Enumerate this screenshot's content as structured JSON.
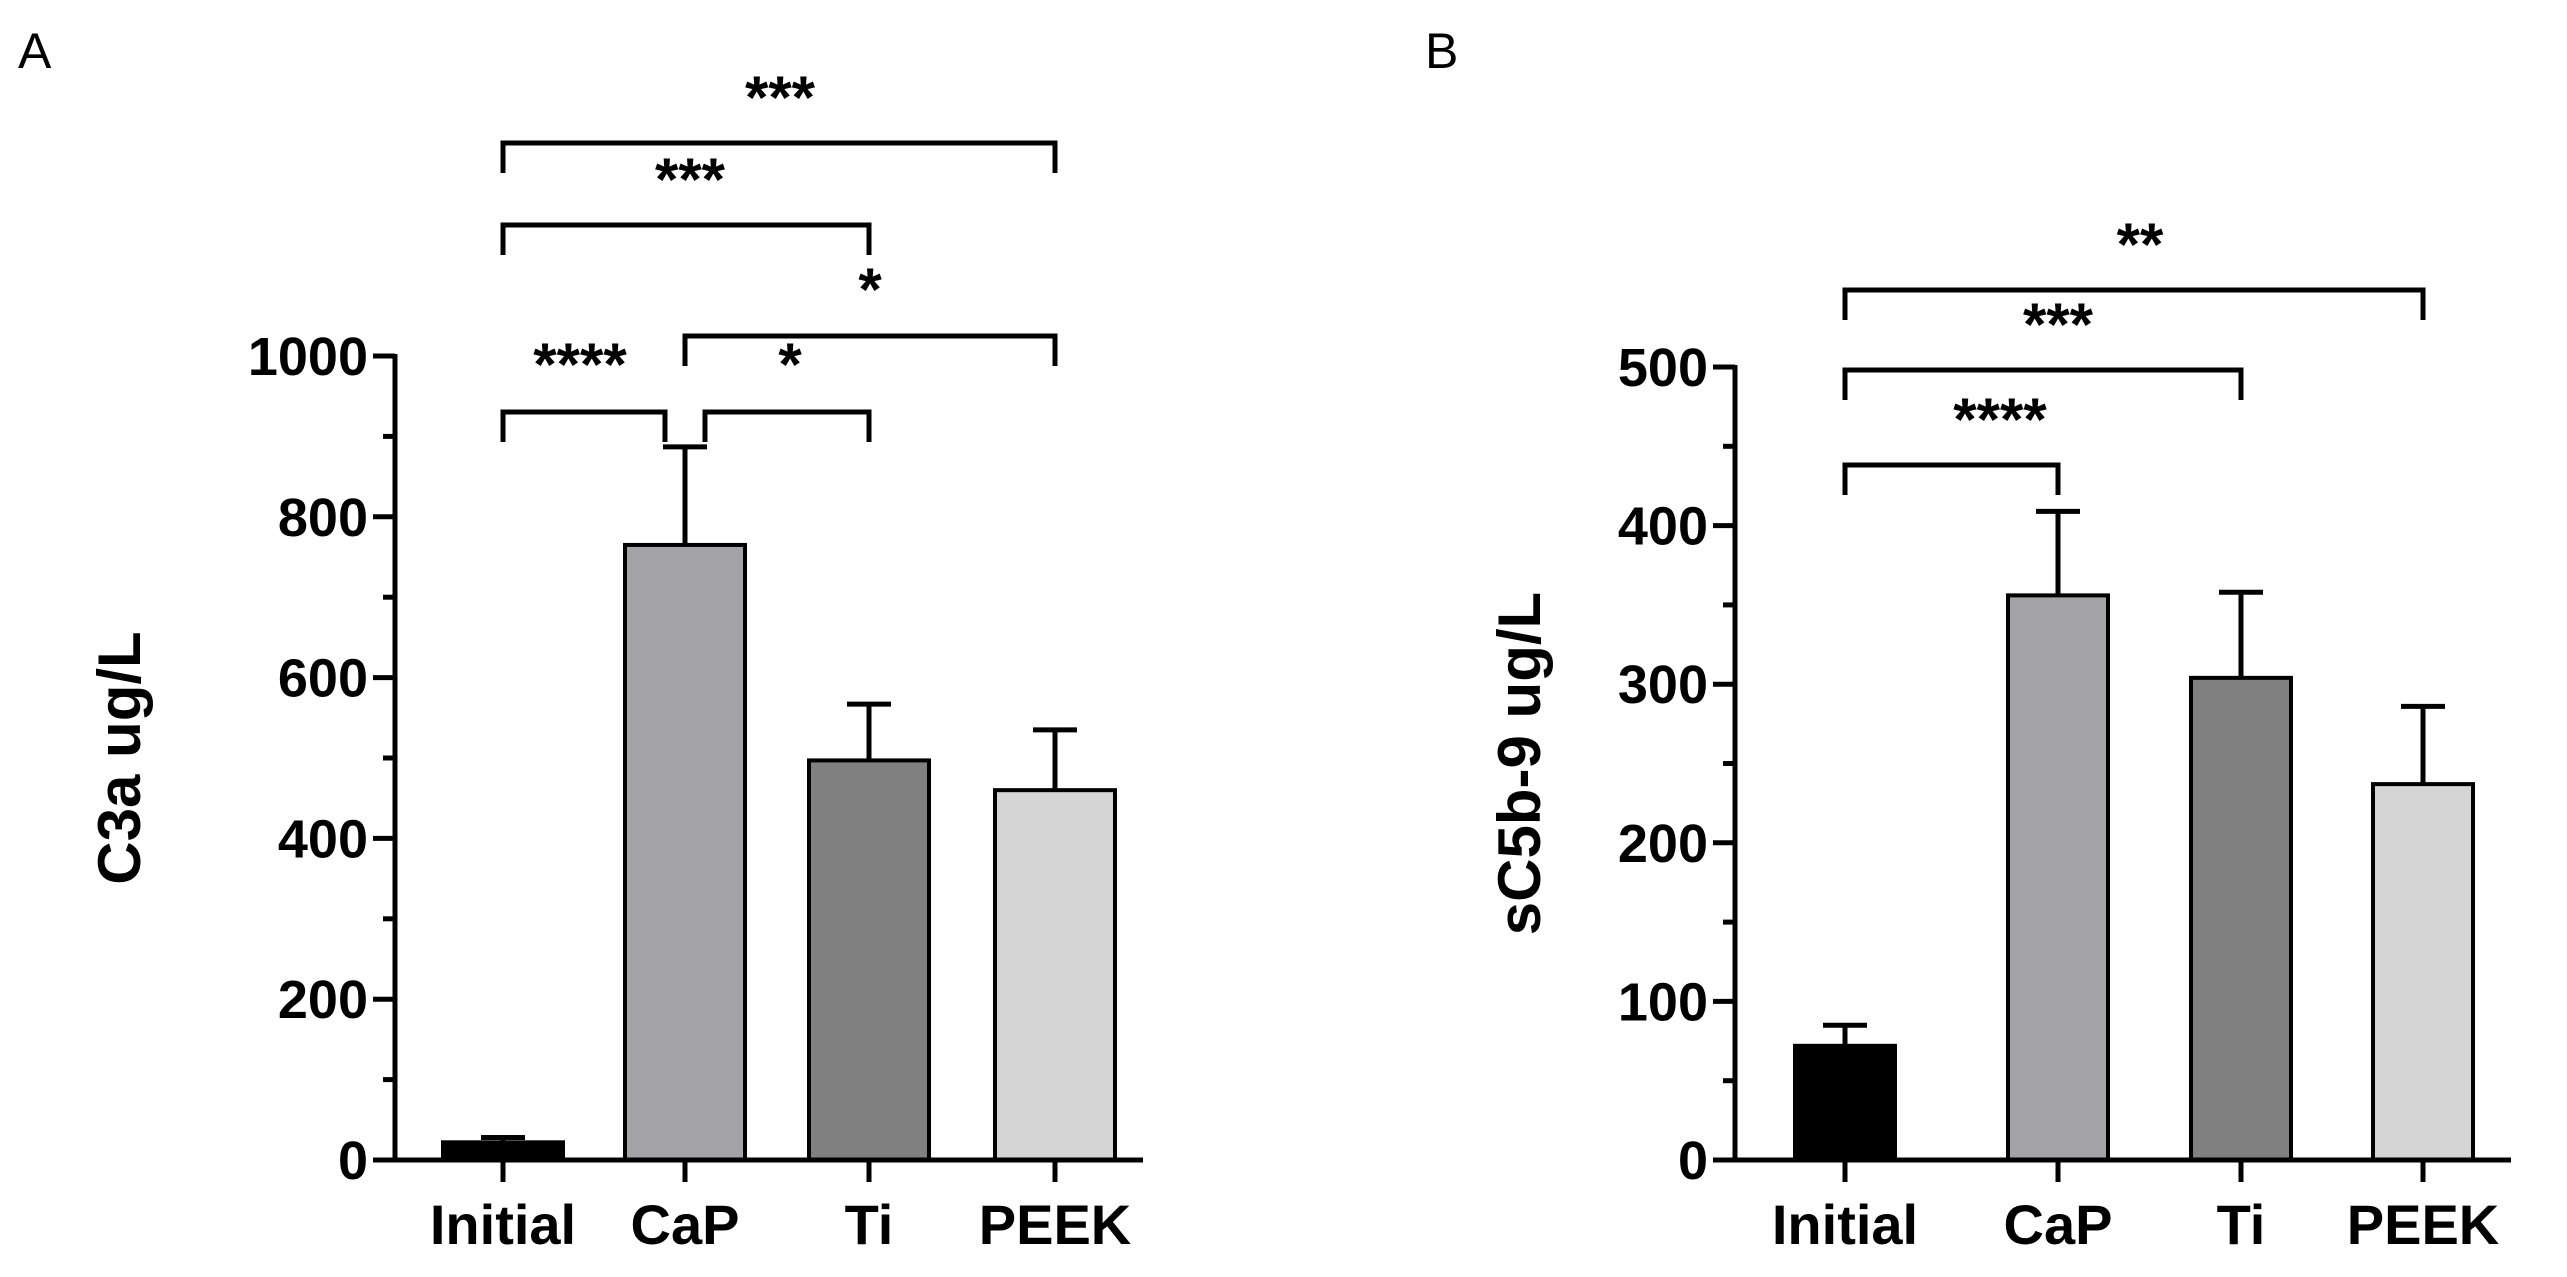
{
  "chart_data": [
    {
      "type": "bar",
      "panel": "A",
      "ylabel": "C3a ug/L",
      "xlabel": "",
      "ylim": [
        0,
        1000
      ],
      "yticks": [
        0,
        200,
        400,
        600,
        800,
        1000
      ],
      "categories": [
        "Initial",
        "CaP",
        "Ti",
        "PEEK"
      ],
      "values": [
        22,
        765,
        497,
        460
      ],
      "errors": [
        6,
        122,
        70,
        75
      ],
      "colors": [
        "#000000",
        "#a3a2a7",
        "#808080",
        "#d5d5d5"
      ],
      "significance": [
        {
          "from": 0,
          "to": 1,
          "label": "****"
        },
        {
          "from": 1,
          "to": 2,
          "label": "*"
        },
        {
          "from": 1,
          "to": 3,
          "label": "*"
        },
        {
          "from": 0,
          "to": 2,
          "label": "***"
        },
        {
          "from": 0,
          "to": 3,
          "label": "***"
        }
      ]
    },
    {
      "type": "bar",
      "panel": "B",
      "ylabel": "sC5b-9 ug/L",
      "xlabel": "",
      "ylim": [
        0,
        500
      ],
      "yticks": [
        0,
        100,
        200,
        300,
        400,
        500
      ],
      "categories": [
        "Initial",
        "CaP",
        "Ti",
        "PEEK"
      ],
      "values": [
        72,
        356,
        304,
        237
      ],
      "errors": [
        13,
        53,
        54,
        49
      ],
      "colors": [
        "#000000",
        "#a3a2a7",
        "#808080",
        "#d5d5d5"
      ],
      "significance": [
        {
          "from": 0,
          "to": 1,
          "label": "****"
        },
        {
          "from": 0,
          "to": 2,
          "label": "***"
        },
        {
          "from": 0,
          "to": 3,
          "label": "**"
        }
      ]
    }
  ]
}
